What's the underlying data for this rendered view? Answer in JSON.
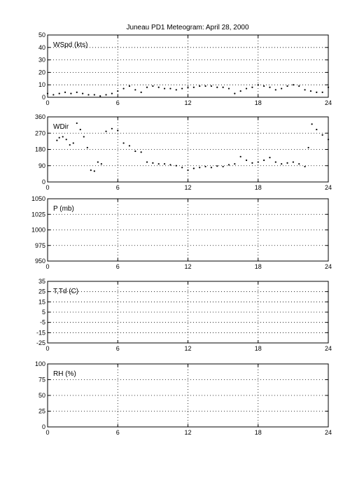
{
  "figure": {
    "title": "Juneau PD1 Meteogram:      April 28, 2000"
  },
  "chart_data": [
    {
      "type": "scatter",
      "label": "WSpd (kts)",
      "xlim": [
        0,
        24
      ],
      "ylim": [
        0,
        50
      ],
      "xticks": [
        "0",
        "6",
        "12",
        "18",
        "24"
      ],
      "yticks": [
        "0",
        "10",
        "20",
        "30",
        "40",
        "50"
      ],
      "grid": true,
      "x": [
        0,
        0.5,
        1,
        1.5,
        2,
        2.5,
        3,
        3.5,
        4,
        4.5,
        5,
        5.5,
        6,
        6.5,
        7,
        7.5,
        8,
        8.5,
        9,
        9.5,
        10,
        10.5,
        11,
        11.5,
        12,
        12.5,
        13,
        13.5,
        14,
        14.5,
        15,
        15.5,
        16,
        16.5,
        17,
        17.5,
        18,
        18.5,
        19,
        19.5,
        20,
        20.5,
        21,
        21.5,
        22,
        22.5,
        23,
        23.5,
        24
      ],
      "y": [
        3,
        2,
        3,
        4,
        3,
        4,
        3,
        2,
        2,
        1,
        2,
        3,
        5,
        7,
        9,
        6,
        4,
        8,
        9,
        8,
        7,
        7,
        6,
        7,
        8,
        8,
        9,
        9,
        9,
        8,
        8,
        7,
        3,
        5,
        7,
        8,
        10,
        9,
        8,
        6,
        7,
        9,
        10,
        9,
        6,
        5,
        4,
        4,
        8
      ]
    },
    {
      "type": "scatter",
      "label": "WDir",
      "xlim": [
        0,
        24
      ],
      "ylim": [
        0,
        360
      ],
      "xticks": [
        "0",
        "6",
        "12",
        "18",
        "24"
      ],
      "yticks": [
        "0",
        "90",
        "180",
        "270",
        "360"
      ],
      "grid": true,
      "x": [
        0.8,
        1.0,
        1.3,
        1.6,
        1.9,
        2.2,
        2.5,
        2.8,
        3.1,
        3.4,
        3.7,
        4.0,
        4.3,
        4.6,
        5.0,
        5.5,
        6.0,
        6.5,
        7.0,
        7.5,
        8.0,
        8.5,
        9.0,
        9.5,
        10.0,
        10.5,
        11.0,
        11.5,
        12.0,
        12.5,
        13.0,
        13.5,
        14.0,
        14.5,
        15.0,
        15.5,
        16.0,
        16.5,
        17.0,
        17.5,
        18.0,
        18.5,
        19.0,
        19.5,
        20.0,
        20.5,
        21.0,
        21.5,
        22.0,
        22.3,
        22.6,
        23.0,
        23.5,
        24.0
      ],
      "y": [
        230,
        245,
        250,
        235,
        205,
        215,
        325,
        290,
        250,
        190,
        65,
        60,
        110,
        100,
        280,
        295,
        285,
        215,
        200,
        170,
        165,
        110,
        105,
        100,
        100,
        95,
        90,
        80,
        65,
        75,
        80,
        85,
        80,
        88,
        85,
        95,
        100,
        140,
        120,
        105,
        110,
        120,
        135,
        110,
        100,
        105,
        110,
        100,
        85,
        190,
        320,
        290,
        260,
        235
      ]
    },
    {
      "type": "scatter",
      "label": "P (mb)",
      "xlim": [
        0,
        24
      ],
      "ylim": [
        950,
        1050
      ],
      "xticks": [
        "0",
        "6",
        "12",
        "18",
        "24"
      ],
      "yticks": [
        "950",
        "975",
        "1000",
        "1025",
        "1050"
      ],
      "grid": true,
      "x": [],
      "y": []
    },
    {
      "type": "scatter",
      "label": "T,Td (C)",
      "xlim": [
        0,
        24
      ],
      "ylim": [
        -25,
        35
      ],
      "xticks": [
        "0",
        "6",
        "12",
        "18",
        "24"
      ],
      "yticks": [
        "-25",
        "-15",
        "-5",
        "5",
        "15",
        "25",
        "35"
      ],
      "grid": true,
      "x": [],
      "y": []
    },
    {
      "type": "scatter",
      "label": "RH (%)",
      "xlim": [
        0,
        24
      ],
      "ylim": [
        0,
        100
      ],
      "xticks": [
        "0",
        "6",
        "12",
        "18",
        "24"
      ],
      "yticks": [
        "0",
        "25",
        "50",
        "75",
        "100"
      ],
      "grid": true,
      "x": [],
      "y": []
    }
  ]
}
